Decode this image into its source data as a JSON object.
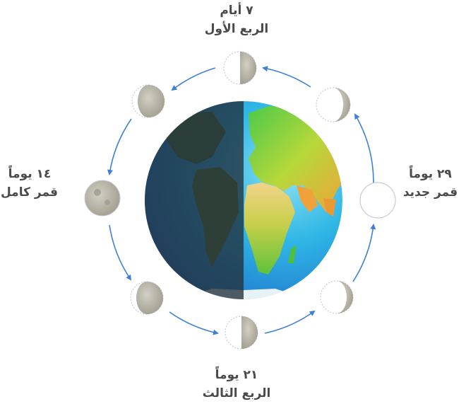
{
  "labels": {
    "first_quarter": {
      "days": "٧ أيام",
      "phase": "الربع الأول"
    },
    "new_moon": {
      "days": "٢٩ يوماً",
      "phase": "قمر جديد"
    },
    "full_moon": {
      "days": "١٤ يوماً",
      "phase": "قمر كامل"
    },
    "third_quarter": {
      "days": "٢١ يوماً",
      "phase": "الربع الثالث"
    }
  },
  "moon_phases": [
    "new-moon",
    "waxing-crescent",
    "first-quarter",
    "waxing-gibbous",
    "full-moon",
    "waning-gibbous",
    "third-quarter",
    "waning-crescent"
  ],
  "colors": {
    "orbit_arrow": "#3f80d6",
    "ocean_day": "#2fa6dd",
    "land_day": "#86d33d",
    "night_side": "#2e3f4c",
    "moon_lit": "#b9b6a8",
    "moon_dark": "#ffffff"
  }
}
